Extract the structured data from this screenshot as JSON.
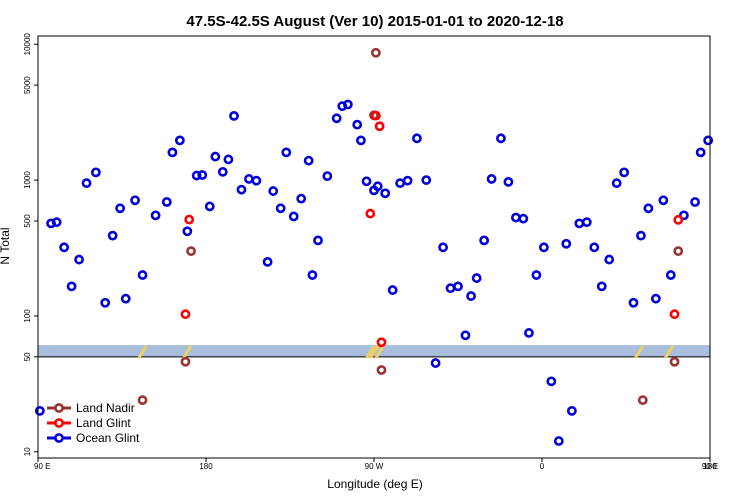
{
  "chart_data": {
    "type": "scatter",
    "title": "47.5S-42.5S August (Ver 10)   2015-01-01 to 2020-12-18",
    "xlabel": "Longitude (deg E)",
    "ylabel": "N Total",
    "xlim": [
      90,
      450
    ],
    "ylim": [
      9,
      11500
    ],
    "yscale": "log",
    "x_ticks": [
      {
        "value": 90,
        "label": "90 E"
      },
      {
        "value": 180,
        "label": "180"
      },
      {
        "value": 270,
        "label": "90 W"
      },
      {
        "value": 360,
        "label": "0"
      },
      {
        "value": 450,
        "label": "90 E"
      }
    ],
    "x_ticks_secondary": [
      {
        "value": 450,
        "label": "180"
      }
    ],
    "y_ticks": [
      {
        "value": 10,
        "label": "10"
      },
      {
        "value": 50,
        "label": "50"
      },
      {
        "value": 100,
        "label": "100"
      },
      {
        "value": 500,
        "label": "500"
      },
      {
        "value": 1000,
        "label": "1000"
      },
      {
        "value": 5000,
        "label": "5000"
      },
      {
        "value": 10000,
        "label": "10000"
      }
    ],
    "reference_line": 50,
    "band": {
      "low": 50,
      "high": 61,
      "color": "#a8bedc"
    },
    "band_markers": [
      {
        "x": 146,
        "color": "#f0d060"
      },
      {
        "x": 170,
        "color": "#f0d060"
      },
      {
        "x": 268,
        "color": "#f0d060"
      },
      {
        "x": 270,
        "color": "#f0d060"
      },
      {
        "x": 273,
        "color": "#f0d060"
      },
      {
        "x": 412,
        "color": "#f0d060"
      },
      {
        "x": 428,
        "color": "#f0d060"
      }
    ],
    "legend_position": "bottom-left",
    "series": [
      {
        "name": "Land Nadir",
        "color": "#993333",
        "points": [
          [
            146,
            24
          ],
          [
            169,
            46
          ],
          [
            172,
            300
          ],
          [
            270,
            2999
          ],
          [
            271,
            8655
          ],
          [
            274,
            40
          ],
          [
            414,
            24
          ],
          [
            431,
            46
          ],
          [
            433,
            300
          ]
        ]
      },
      {
        "name": "Land Glint",
        "color": "#ff0000",
        "points": [
          [
            169,
            103
          ],
          [
            171,
            512
          ],
          [
            268,
            567
          ],
          [
            271,
            2983
          ],
          [
            273,
            2490
          ],
          [
            274,
            64
          ],
          [
            431,
            103
          ],
          [
            433,
            510
          ]
        ]
      },
      {
        "name": "Ocean Glint",
        "color": "#0000dd",
        "points": [
          [
            91,
            20
          ],
          [
            97,
            480
          ],
          [
            100,
            490
          ],
          [
            104,
            320
          ],
          [
            108,
            165
          ],
          [
            112,
            260
          ],
          [
            116,
            950
          ],
          [
            121,
            1140
          ],
          [
            126,
            125
          ],
          [
            130,
            390
          ],
          [
            134,
            620
          ],
          [
            137,
            134
          ],
          [
            142,
            710
          ],
          [
            146,
            200
          ],
          [
            153,
            550
          ],
          [
            159,
            690
          ],
          [
            162,
            1600
          ],
          [
            166,
            1960
          ],
          [
            170,
            420
          ],
          [
            175,
            1080
          ],
          [
            178,
            1090
          ],
          [
            182,
            640
          ],
          [
            185,
            1490
          ],
          [
            189,
            1150
          ],
          [
            192,
            1420
          ],
          [
            195,
            2970
          ],
          [
            199,
            850
          ],
          [
            203,
            1020
          ],
          [
            207,
            990
          ],
          [
            213,
            250
          ],
          [
            216,
            830
          ],
          [
            220,
            620
          ],
          [
            223,
            1600
          ],
          [
            227,
            540
          ],
          [
            231,
            730
          ],
          [
            235,
            1390
          ],
          [
            237,
            200
          ],
          [
            240,
            360
          ],
          [
            245,
            1070
          ],
          [
            250,
            2850
          ],
          [
            253,
            3500
          ],
          [
            256,
            3600
          ],
          [
            261,
            2560
          ],
          [
            263,
            1960
          ],
          [
            266,
            980
          ],
          [
            270,
            840
          ],
          [
            272,
            900
          ],
          [
            276,
            800
          ],
          [
            280,
            155
          ],
          [
            284,
            950
          ],
          [
            288,
            990
          ],
          [
            293,
            2030
          ],
          [
            298,
            1000
          ],
          [
            303,
            45
          ],
          [
            307,
            320
          ],
          [
            311,
            160
          ],
          [
            315,
            165
          ],
          [
            319,
            72
          ],
          [
            322,
            140
          ],
          [
            325,
            190
          ],
          [
            329,
            360
          ],
          [
            333,
            1020
          ],
          [
            338,
            2030
          ],
          [
            342,
            970
          ],
          [
            346,
            530
          ],
          [
            350,
            520
          ],
          [
            353,
            75
          ],
          [
            357,
            200
          ],
          [
            361,
            320
          ],
          [
            365,
            33
          ],
          [
            369,
            12
          ],
          [
            373,
            340
          ],
          [
            376,
            20
          ],
          [
            380,
            480
          ],
          [
            384,
            490
          ],
          [
            388,
            320
          ],
          [
            392,
            165
          ],
          [
            396,
            260
          ],
          [
            400,
            950
          ],
          [
            404,
            1140
          ],
          [
            409,
            125
          ],
          [
            413,
            390
          ],
          [
            417,
            620
          ],
          [
            421,
            134
          ],
          [
            425,
            710
          ],
          [
            429,
            200
          ],
          [
            436,
            550
          ],
          [
            442,
            690
          ],
          [
            445,
            1600
          ],
          [
            449,
            1960
          ]
        ]
      }
    ]
  }
}
